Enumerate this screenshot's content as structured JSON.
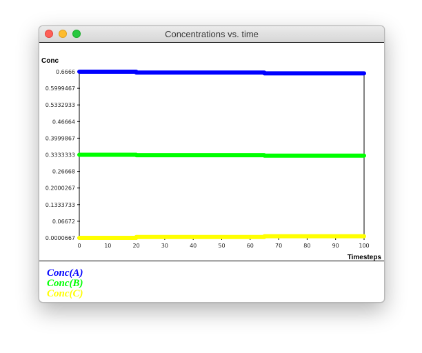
{
  "window": {
    "title": "Concentrations vs. time"
  },
  "chart_data": {
    "type": "line",
    "title": "",
    "xlabel": "Timesteps",
    "ylabel": "Conc",
    "xlim": [
      0,
      100
    ],
    "ylim": [
      6.67e-05,
      0.6666
    ],
    "xticks": [
      "0",
      "10",
      "20",
      "30",
      "40",
      "50",
      "60",
      "70",
      "80",
      "90",
      "100"
    ],
    "yticks": [
      "0.0000667",
      "0.06672",
      "0.1333733",
      "0.2000267",
      "0.26668",
      "0.3333333",
      "0.3999867",
      "0.46664",
      "0.5332933",
      "0.5999467",
      "0.6666"
    ],
    "grid": false,
    "legend_position": "bottom",
    "series": [
      {
        "name": "Conc(A)",
        "color": "#0000ff",
        "x": [
          0,
          20,
          20,
          65,
          65,
          100
        ],
        "y": [
          0.6666,
          0.6666,
          0.6633,
          0.6633,
          0.66,
          0.66
        ]
      },
      {
        "name": "Conc(B)",
        "color": "#00ff00",
        "x": [
          0,
          20,
          20,
          65,
          65,
          100
        ],
        "y": [
          0.3333,
          0.3333,
          0.3317,
          0.3317,
          0.33,
          0.33
        ]
      },
      {
        "name": "Conc(C)",
        "color": "#ffff00",
        "x": [
          0,
          20,
          20,
          65,
          65,
          100
        ],
        "y": [
          6.67e-05,
          6.67e-05,
          0.0035,
          0.0035,
          0.0068,
          0.0068
        ]
      }
    ]
  }
}
